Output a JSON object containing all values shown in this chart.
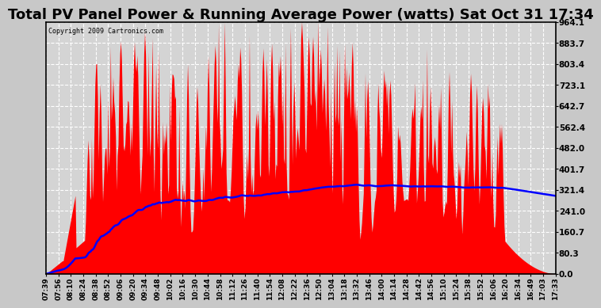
{
  "title": "Total PV Panel Power & Running Average Power (watts) Sat Oct 31 17:34",
  "copyright": "Copyright 2009 Cartronics.com",
  "ylabel_right_values": [
    0.0,
    80.3,
    160.7,
    241.0,
    321.4,
    401.7,
    482.0,
    562.4,
    642.7,
    723.1,
    803.4,
    883.7,
    964.1
  ],
  "ymax": 964.1,
  "ymin": 0.0,
  "background_color": "#c8c8c8",
  "plot_bg_color": "#d4d4d4",
  "bar_color": "#ff0000",
  "line_color": "#0000ff",
  "title_fontsize": 13,
  "grid_color": "#ffffff",
  "xtick_labels": [
    "07:39",
    "07:56",
    "08:10",
    "08:24",
    "08:38",
    "08:52",
    "09:06",
    "09:20",
    "09:34",
    "09:48",
    "10:02",
    "10:16",
    "10:30",
    "10:44",
    "10:58",
    "11:12",
    "11:26",
    "11:40",
    "11:54",
    "12:08",
    "12:22",
    "12:36",
    "12:50",
    "13:04",
    "13:18",
    "13:32",
    "13:46",
    "14:00",
    "14:14",
    "14:28",
    "14:42",
    "14:56",
    "15:10",
    "15:24",
    "15:38",
    "15:52",
    "16:06",
    "16:20",
    "16:34",
    "16:49",
    "17:03",
    "17:33"
  ]
}
